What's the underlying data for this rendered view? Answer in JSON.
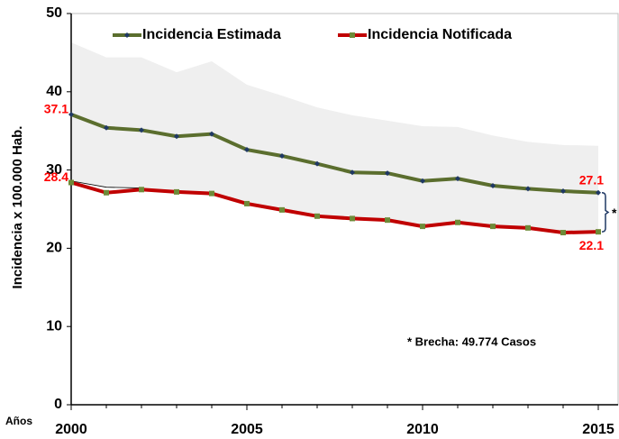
{
  "chart_data": {
    "type": "line",
    "y_label": "Incidencia x 100.000 Hab.",
    "x_label": "Años",
    "annotation": "* Brecha: 49.774 Casos",
    "gap_marker": "*",
    "x": [
      2000,
      2001,
      2002,
      2003,
      2004,
      2005,
      2006,
      2007,
      2008,
      2009,
      2010,
      2011,
      2012,
      2013,
      2014,
      2015
    ],
    "xlim": [
      2000,
      2015
    ],
    "xticks": [
      2000,
      2005,
      2010,
      2015
    ],
    "ylim": [
      0,
      50
    ],
    "yticks": [
      0,
      10,
      20,
      30,
      40,
      50
    ],
    "band": {
      "color": "#efefef",
      "upper": [
        46.3,
        44.4,
        44.4,
        42.5,
        43.9,
        40.9,
        39.5,
        38.0,
        37.0,
        36.3,
        35.6,
        35.5,
        34.4,
        33.6,
        33.2,
        33.1
      ],
      "lower": [
        28.6,
        27.8,
        27.7,
        27.2,
        27.0,
        25.7,
        24.9,
        24.1,
        23.8,
        23.6,
        22.8,
        23.3,
        22.8,
        22.6,
        22.0,
        22.1
      ]
    },
    "series": [
      {
        "name": "Incidencia Estimada",
        "color": "#5b6e2e",
        "marker_color": "#1f3864",
        "marker": "diamond",
        "values": [
          37.1,
          35.4,
          35.1,
          34.3,
          34.6,
          32.6,
          31.8,
          30.8,
          29.7,
          29.6,
          28.6,
          28.9,
          28.0,
          27.6,
          27.3,
          27.1
        ],
        "value_labels": [
          "37.1",
          null,
          null,
          null,
          null,
          null,
          null,
          null,
          null,
          null,
          null,
          null,
          null,
          null,
          null,
          "27.1"
        ]
      },
      {
        "name": "Incidencia  Notificada",
        "color": "#c00000",
        "marker_color": "#6e8a38",
        "marker": "square",
        "values": [
          28.4,
          27.1,
          27.5,
          27.2,
          27.0,
          25.7,
          24.9,
          24.1,
          23.8,
          23.6,
          22.8,
          23.3,
          22.8,
          22.6,
          22.0,
          22.1
        ],
        "value_labels": [
          "28.4",
          null,
          null,
          null,
          null,
          null,
          null,
          null,
          null,
          null,
          null,
          null,
          null,
          null,
          null,
          "22.1"
        ]
      }
    ]
  }
}
